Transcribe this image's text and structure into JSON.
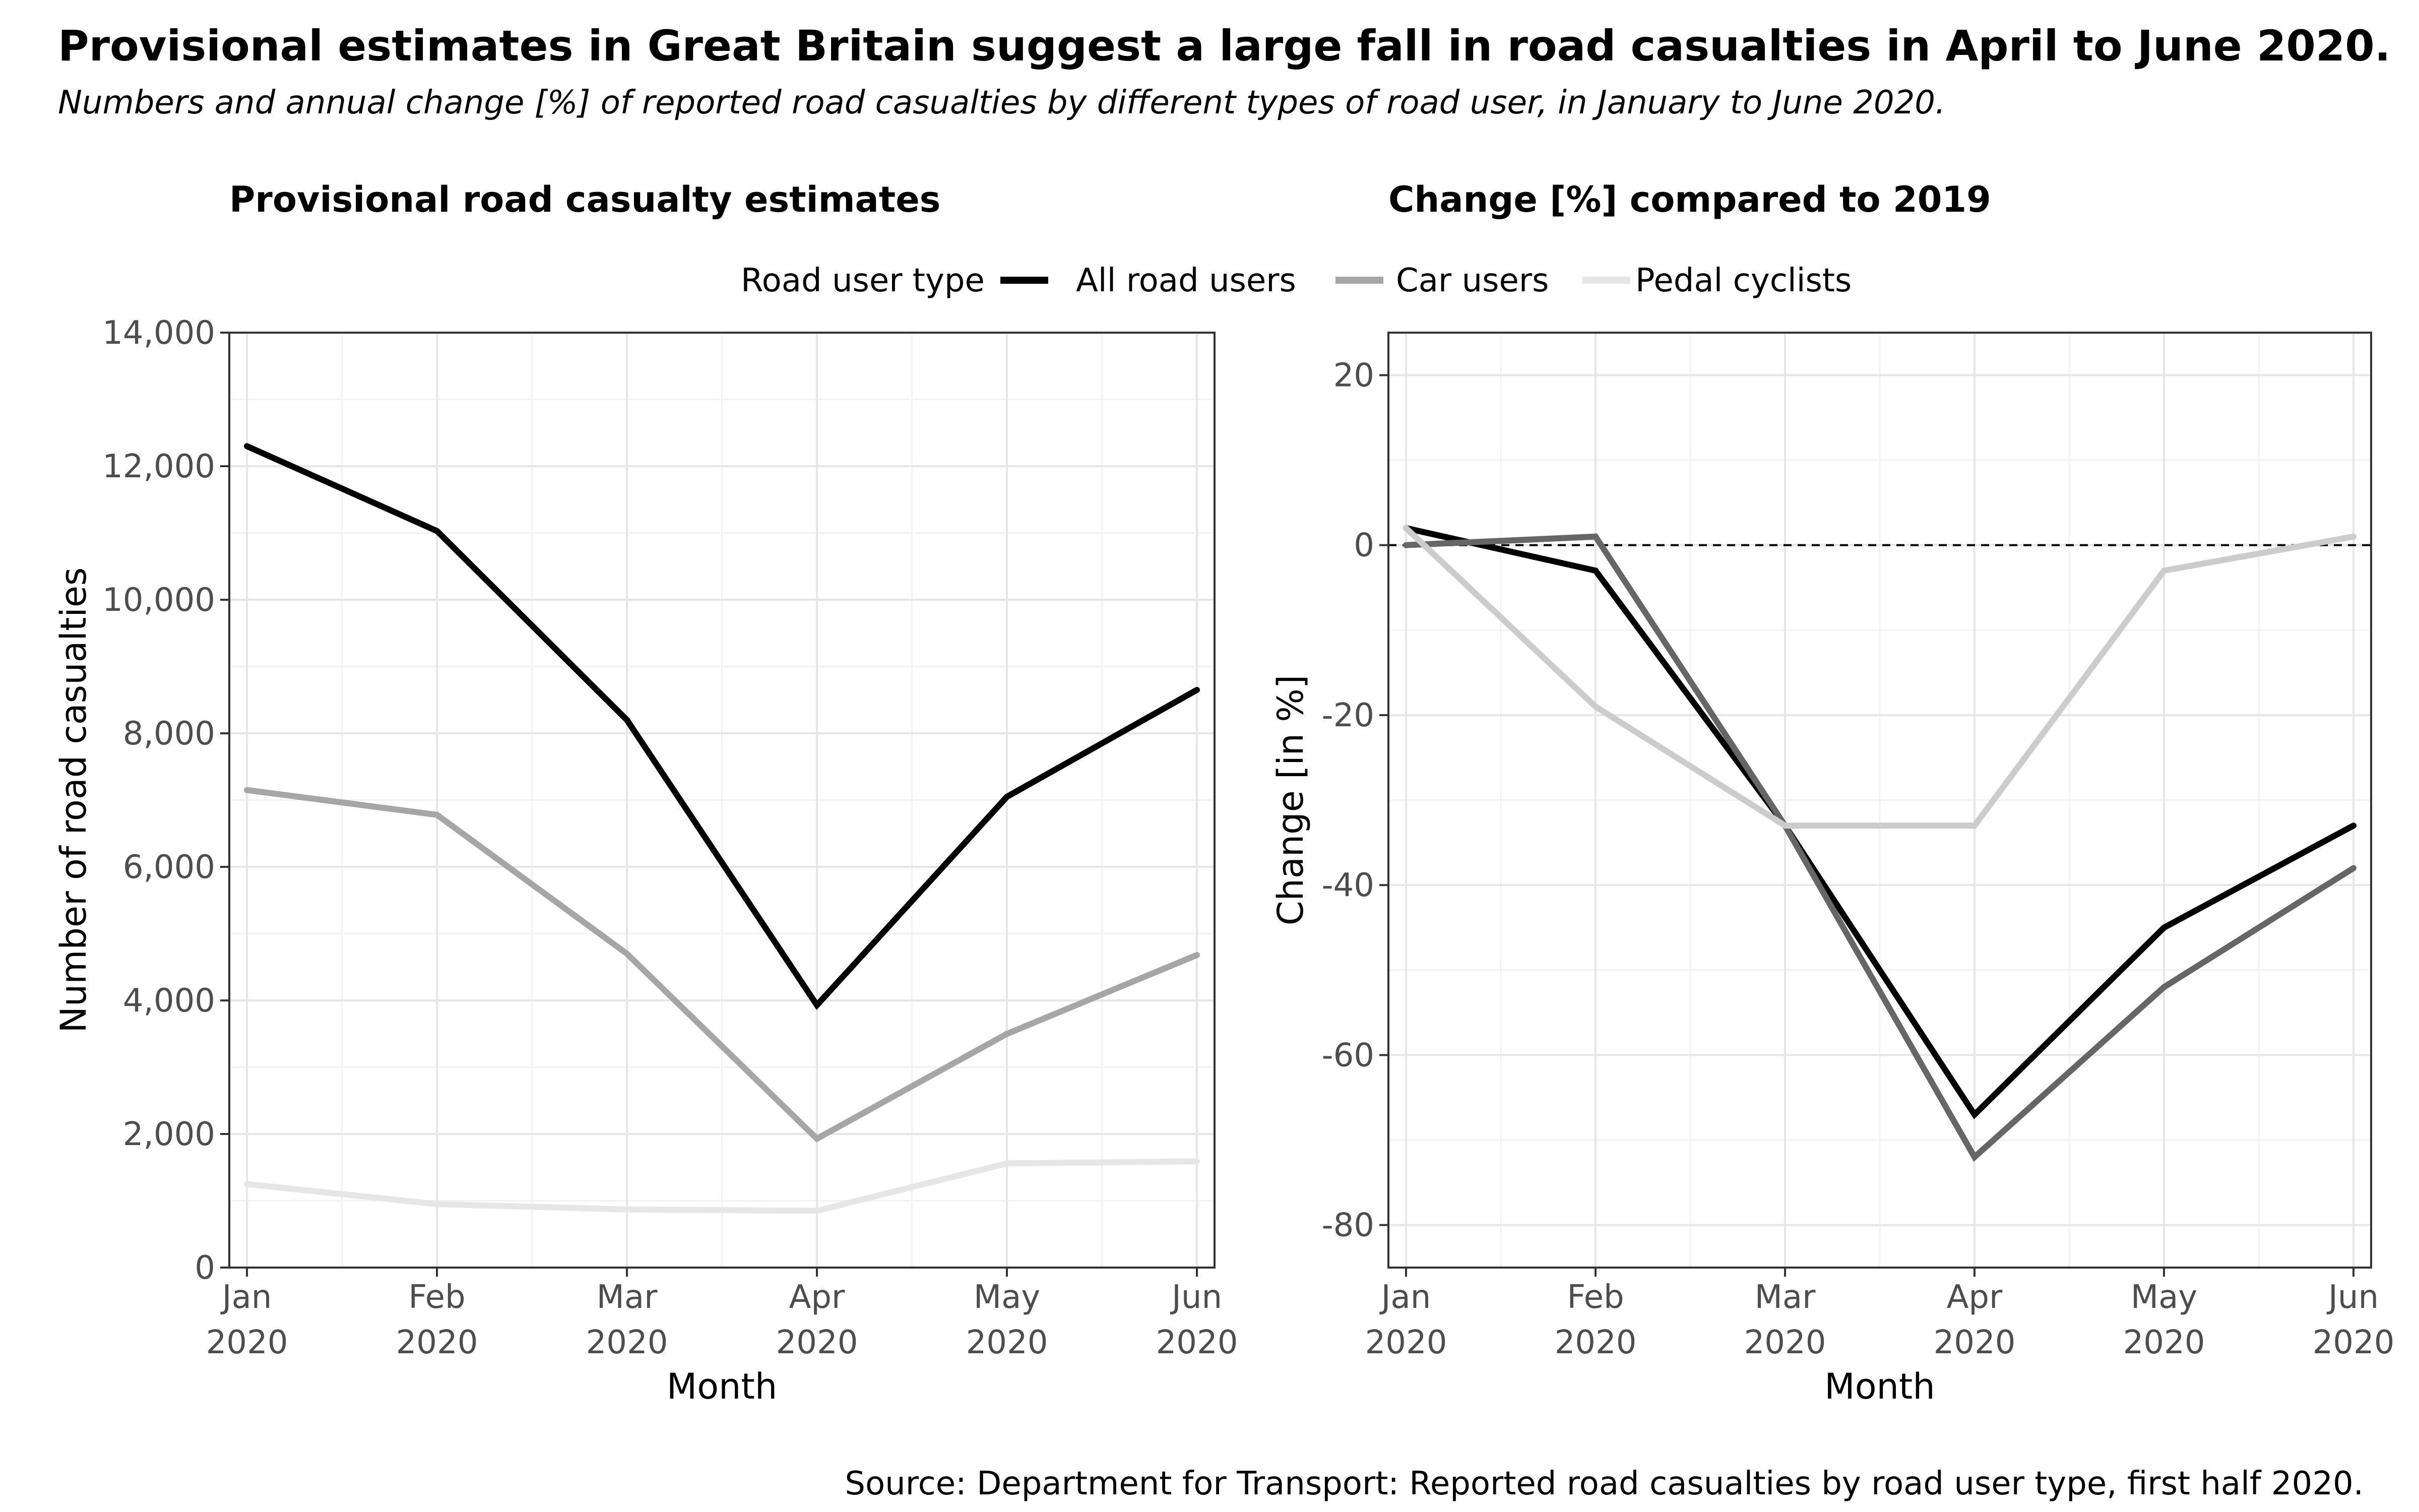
{
  "title": "Provisional estimates in Great Britain suggest a large fall in road casualties in April to June 2020.",
  "subtitle": "Numbers and annual change [%] of reported road casualties by different types of road user, in January to June 2020.",
  "legend": {
    "title": "Road user type",
    "items": [
      "All road users",
      "Car users",
      "Pedal cyclists"
    ]
  },
  "source": "Source: Department for Transport: Reported road casualties by road user type, first half 2020.",
  "chart_data": [
    {
      "type": "line",
      "title": "Provisional road casualty estimates",
      "xlabel": "Month",
      "ylabel": "Number of road casualties",
      "categories": [
        "Jan\n2020",
        "Feb\n2020",
        "Mar\n2020",
        "Apr\n2020",
        "May\n2020",
        "Jun\n2020"
      ],
      "ylim": [
        0,
        14000
      ],
      "yticks": [
        0,
        2000,
        4000,
        6000,
        8000,
        10000,
        12000,
        14000
      ],
      "ytick_labels": [
        "0",
        "2,000",
        "4,000",
        "6,000",
        "8,000",
        "10,000",
        "12,000",
        "14,000"
      ],
      "grid": true,
      "series": [
        {
          "name": "All road users",
          "color": "#000000",
          "values": [
            12300,
            11030,
            8200,
            3930,
            7050,
            8650
          ]
        },
        {
          "name": "Car users",
          "color": "#a6a6a6",
          "values": [
            7150,
            6780,
            4700,
            1930,
            3500,
            4680
          ]
        },
        {
          "name": "Pedal cyclists",
          "color": "#e6e6e6",
          "values": [
            1250,
            950,
            870,
            850,
            1560,
            1590
          ]
        }
      ]
    },
    {
      "type": "line",
      "title": "Change [%] compared to 2019",
      "xlabel": "Month",
      "ylabel": "Change [in %]",
      "categories": [
        "Jan\n2020",
        "Feb\n2020",
        "Mar\n2020",
        "Apr\n2020",
        "May\n2020",
        "Jun\n2020"
      ],
      "ylim": [
        -85,
        25
      ],
      "yticks": [
        -80,
        -60,
        -40,
        -20,
        0,
        20
      ],
      "ytick_labels": [
        "-80",
        "-60",
        "-40",
        "-20",
        "0",
        "20"
      ],
      "reference_line": 0,
      "grid": true,
      "series": [
        {
          "name": "All road users",
          "color": "#000000",
          "values": [
            2,
            -3,
            -33,
            -67,
            -45,
            -33
          ]
        },
        {
          "name": "Car users",
          "color": "#666666",
          "values": [
            0,
            1,
            -33,
            -72,
            -52,
            -38
          ]
        },
        {
          "name": "Pedal cyclists",
          "color": "#cccccc",
          "values": [
            2,
            -19,
            -33,
            -33,
            -3,
            1
          ]
        }
      ]
    }
  ]
}
